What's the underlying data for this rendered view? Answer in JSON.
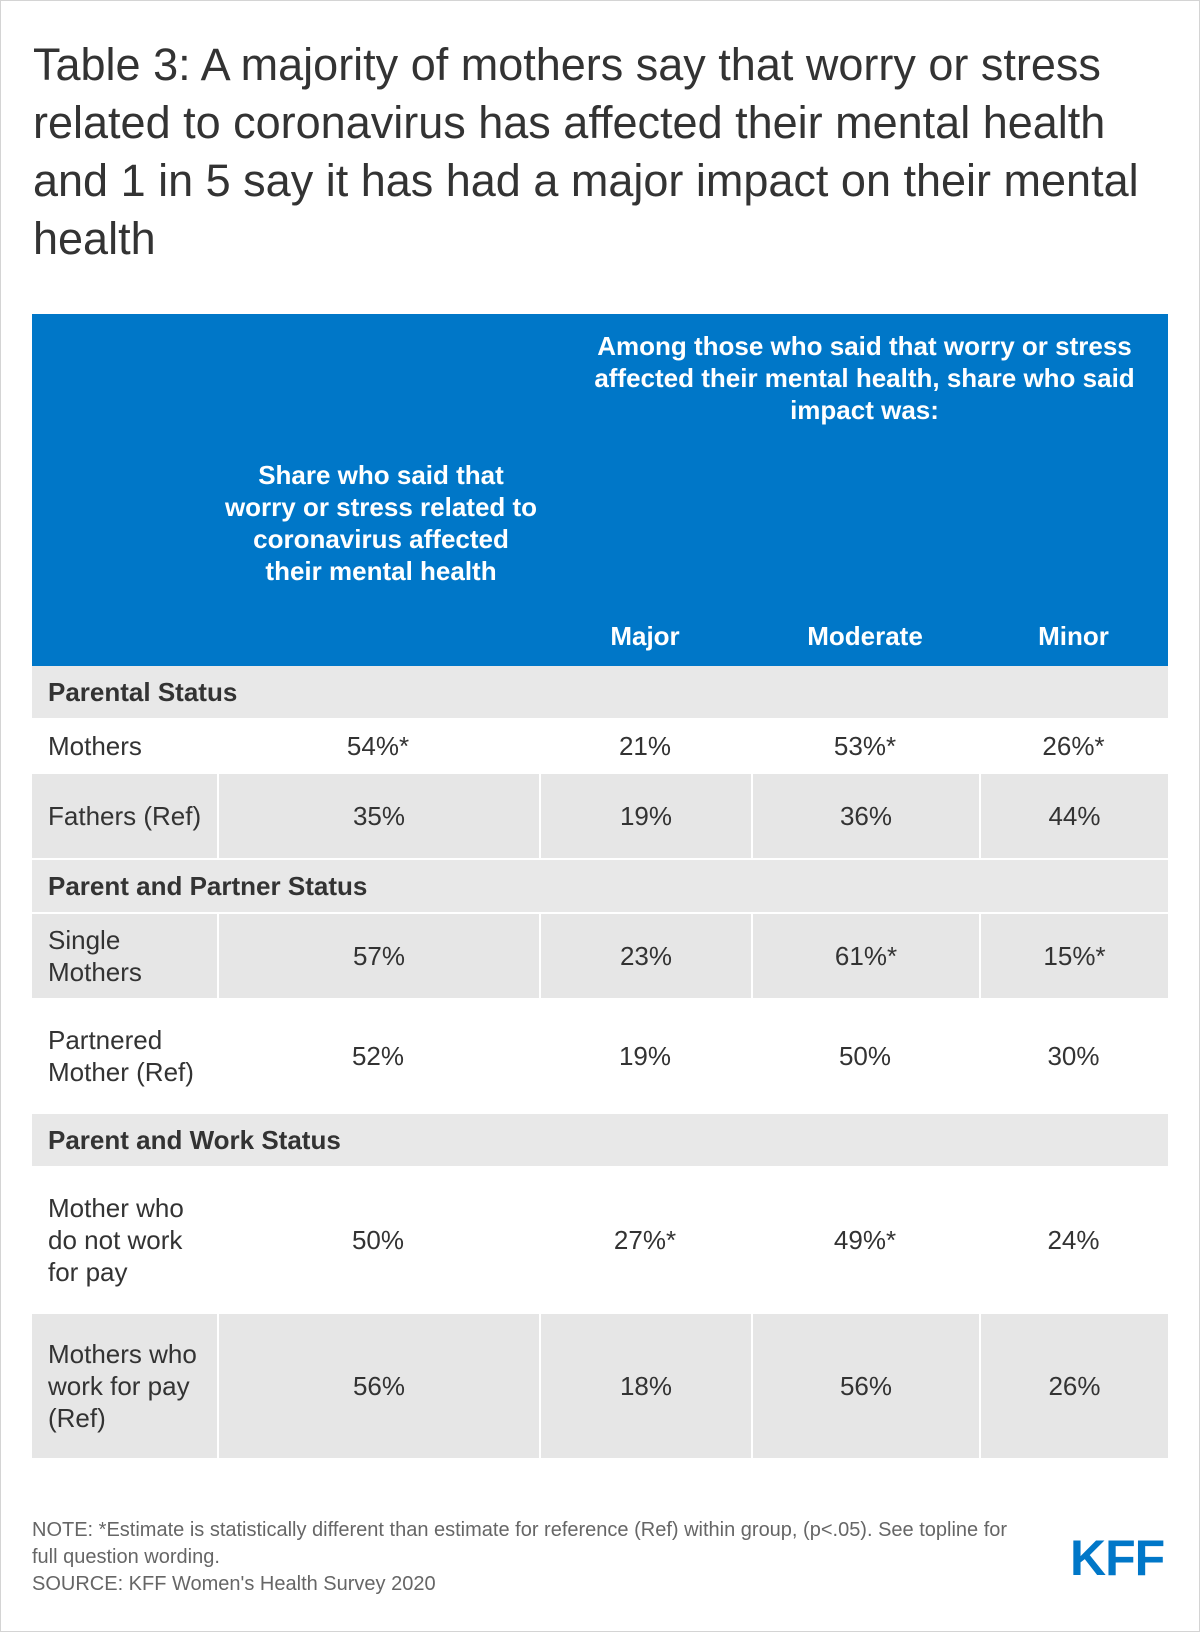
{
  "title": "Table 3: A majority of mothers say that worry or stress related to coronavirus has affected their mental health and 1 in 5 say it has had a major impact on their mental health",
  "colors": {
    "header_bg": "#0077c8",
    "band_bg": "#e6e6e6",
    "logo": "#0077c8"
  },
  "chart_data": {
    "type": "table",
    "header": {
      "span_label": "Among those who said that worry or stress affected their mental health, share who said impact was:",
      "share_label": "Share who said that worry or stress related to coronavirus affected their mental health",
      "major": "Major",
      "moderate": "Moderate",
      "minor": "Minor"
    },
    "groups": [
      {
        "name": "Parental Status",
        "rows": [
          {
            "label": "Mothers",
            "values": [
              "54%*",
              "21%",
              "53%*",
              "26%*"
            ]
          },
          {
            "label": "Fathers (Ref)",
            "values": [
              "35%",
              "19%",
              "36%",
              "44%"
            ]
          }
        ]
      },
      {
        "name": "Parent and Partner Status",
        "rows": [
          {
            "label": "Single Mothers",
            "values": [
              "57%",
              "23%",
              "61%*",
              "15%*"
            ]
          },
          {
            "label": "Partnered Mother (Ref)",
            "values": [
              "52%",
              "19%",
              "50%",
              "30%"
            ]
          }
        ]
      },
      {
        "name": "Parent and Work Status",
        "rows": [
          {
            "label": "Mother who do not work for pay",
            "values": [
              "50%",
              "27%*",
              "49%*",
              "24%"
            ]
          },
          {
            "label": "Mothers who work for pay (Ref)",
            "values": [
              "56%",
              "18%",
              "56%",
              "26%"
            ]
          }
        ]
      }
    ]
  },
  "footer": {
    "note": "NOTE: *Estimate is statistically different than estimate for reference (Ref) within group, (p<.05). See topline for full question wording.",
    "source": "SOURCE: KFF Women's Health Survey 2020"
  },
  "logo_text": "KFF"
}
